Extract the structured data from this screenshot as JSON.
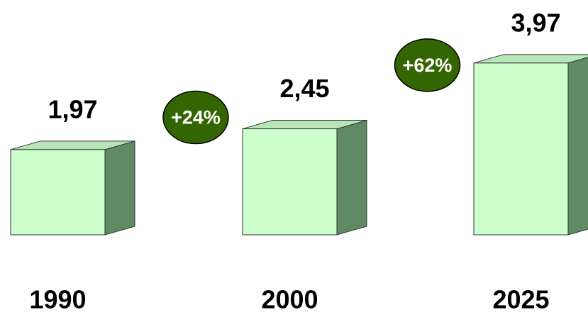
{
  "chart_data": {
    "type": "bar3d",
    "categories": [
      "1990",
      "2000",
      "2025"
    ],
    "values": [
      1.97,
      2.45,
      3.97
    ],
    "value_labels": [
      "1,97",
      "2,45",
      "3,97"
    ],
    "color": "#ccffcc",
    "annotations": [
      "+24%",
      "+62%"
    ],
    "annotation_color": "#336600"
  }
}
